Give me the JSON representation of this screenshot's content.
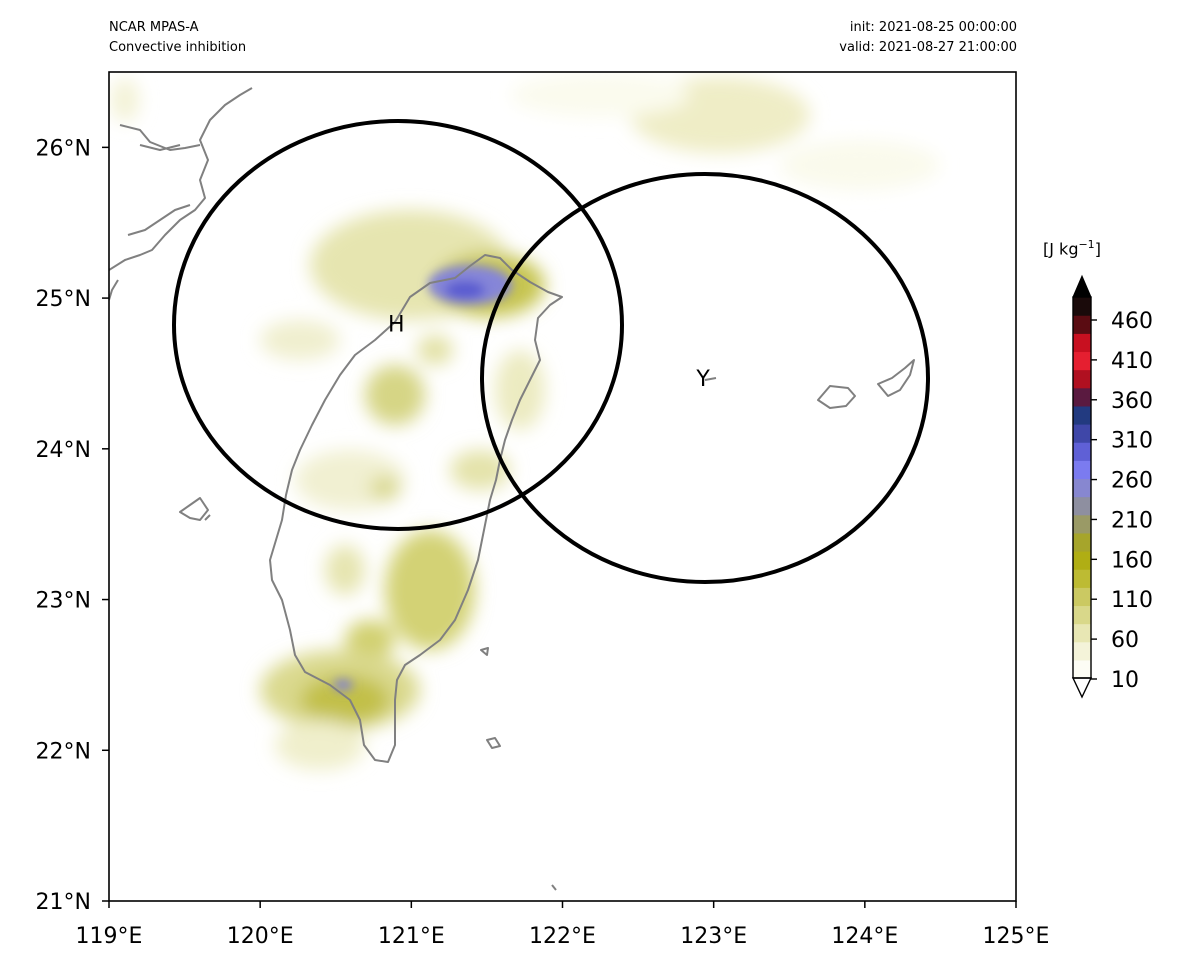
{
  "header": {
    "model": "NCAR MPAS-A",
    "field": "Convective inhibition",
    "init": "init: 2021-08-25 00:00:00",
    "valid": "valid: 2021-08-27 21:00:00"
  },
  "map": {
    "lon_range": [
      119,
      125
    ],
    "lat_range": [
      21,
      26.5
    ],
    "lon_ticks": [
      {
        "value": 119,
        "label": "119°E"
      },
      {
        "value": 120,
        "label": "120°E"
      },
      {
        "value": 121,
        "label": "121°E"
      },
      {
        "value": 122,
        "label": "122°E"
      },
      {
        "value": 123,
        "label": "123°E"
      },
      {
        "value": 124,
        "label": "124°E"
      },
      {
        "value": 125,
        "label": "125°E"
      }
    ],
    "lat_ticks": [
      {
        "value": 21,
        "label": "21°N"
      },
      {
        "value": 22,
        "label": "22°N"
      },
      {
        "value": 23,
        "label": "23°N"
      },
      {
        "value": 24,
        "label": "24°N"
      },
      {
        "value": 25,
        "label": "25°N"
      },
      {
        "value": 26,
        "label": "26°N"
      }
    ],
    "markers": [
      {
        "label": "H",
        "lon": 120.9,
        "lat": 24.83
      },
      {
        "label": "Y",
        "lon": 122.93,
        "lat": 24.47
      }
    ],
    "coast_color": "#808080",
    "circle_color": "#000000"
  },
  "colorbar": {
    "unit_label": "[J kg",
    "unit_sup": "−1",
    "unit_close": "]",
    "tick_labels": [
      "460",
      "410",
      "360",
      "310",
      "260",
      "210",
      "160",
      "110",
      "60",
      "10"
    ],
    "colors": [
      "#fdfdf5",
      "#f4f3d9",
      "#e8e7b4",
      "#d9d88a",
      "#cbc962",
      "#bdbb33",
      "#b0ae14",
      "#a6a52b",
      "#9a9a66",
      "#8e8fa0",
      "#8787d0",
      "#7b7bf0",
      "#5f60d6",
      "#3f47a8",
      "#223a80",
      "#5a1a40",
      "#b01020",
      "#e51f30",
      "#c81020",
      "#5a0c12",
      "#1a0a0a"
    ],
    "extend": "both"
  }
}
